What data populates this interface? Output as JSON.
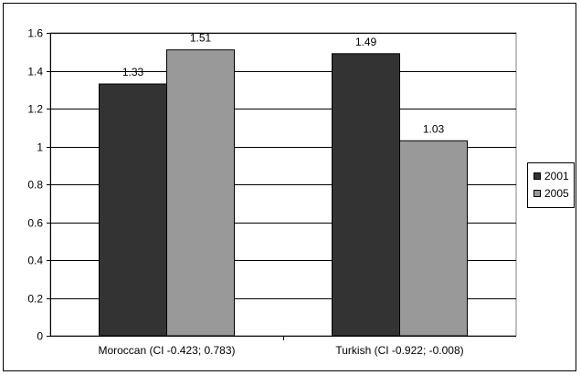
{
  "chart_data": {
    "type": "bar",
    "categories": [
      "Moroccan (CI -0.423; 0.783)",
      "Turkish (CI -0.922; -0.008)"
    ],
    "series": [
      {
        "name": "2001",
        "values": [
          1.33,
          1.49
        ],
        "labels": [
          "1.33",
          "1.49"
        ],
        "color": "#333333"
      },
      {
        "name": "2005",
        "values": [
          1.51,
          1.03
        ],
        "labels": [
          "1.51",
          "1.03"
        ],
        "color": "#999999"
      }
    ],
    "ylim": [
      0,
      1.6
    ],
    "yticks": [
      0,
      0.2,
      0.4,
      0.6,
      0.8,
      1,
      1.2,
      1.4,
      1.6
    ],
    "ytick_labels": [
      "0",
      "0.2",
      "0.4",
      "0.6",
      "0.8",
      "1",
      "1.2",
      "1.4",
      "1.6"
    ],
    "grid": true,
    "legend_position": "right",
    "title": "",
    "xlabel": "",
    "ylabel": ""
  }
}
